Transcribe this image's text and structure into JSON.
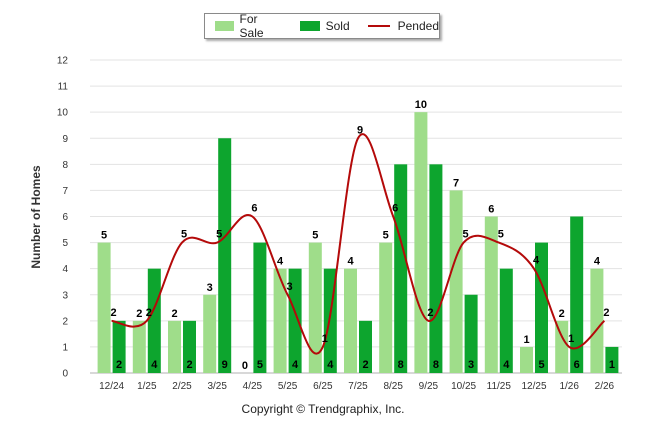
{
  "colors": {
    "for_sale": "#9fdd8a",
    "sold": "#0da52e",
    "pended": "#b40a0a"
  },
  "legend": {
    "for_sale": "For Sale",
    "sold": "Sold",
    "pended": "Pended"
  },
  "copyright": "Copyright © Trendgraphix, Inc.",
  "chart_data": {
    "type": "bar",
    "ylabel": "Number of Homes",
    "ylim": [
      0,
      12
    ],
    "yticks": [
      0,
      1,
      2,
      3,
      4,
      5,
      6,
      7,
      8,
      9,
      10,
      11,
      12
    ],
    "grid": true,
    "legend_position": "top-center",
    "categories": [
      "12/24",
      "1/25",
      "2/25",
      "3/25",
      "4/25",
      "5/25",
      "6/25",
      "7/25",
      "8/25",
      "9/25",
      "10/25",
      "11/25",
      "12/25",
      "1/26",
      "2/26"
    ],
    "series": [
      {
        "name": "For Sale",
        "type": "bar",
        "values": [
          5,
          2,
          2,
          3,
          0,
          4,
          5,
          4,
          5,
          10,
          7,
          6,
          1,
          2,
          4
        ]
      },
      {
        "name": "Sold",
        "type": "bar",
        "values": [
          2,
          4,
          2,
          9,
          5,
          4,
          4,
          2,
          8,
          8,
          3,
          4,
          5,
          6,
          1
        ]
      },
      {
        "name": "Pended",
        "type": "line",
        "values": [
          2,
          2,
          5,
          5,
          6,
          3,
          1,
          9,
          6,
          2,
          5,
          5,
          4,
          1,
          2
        ]
      }
    ]
  }
}
